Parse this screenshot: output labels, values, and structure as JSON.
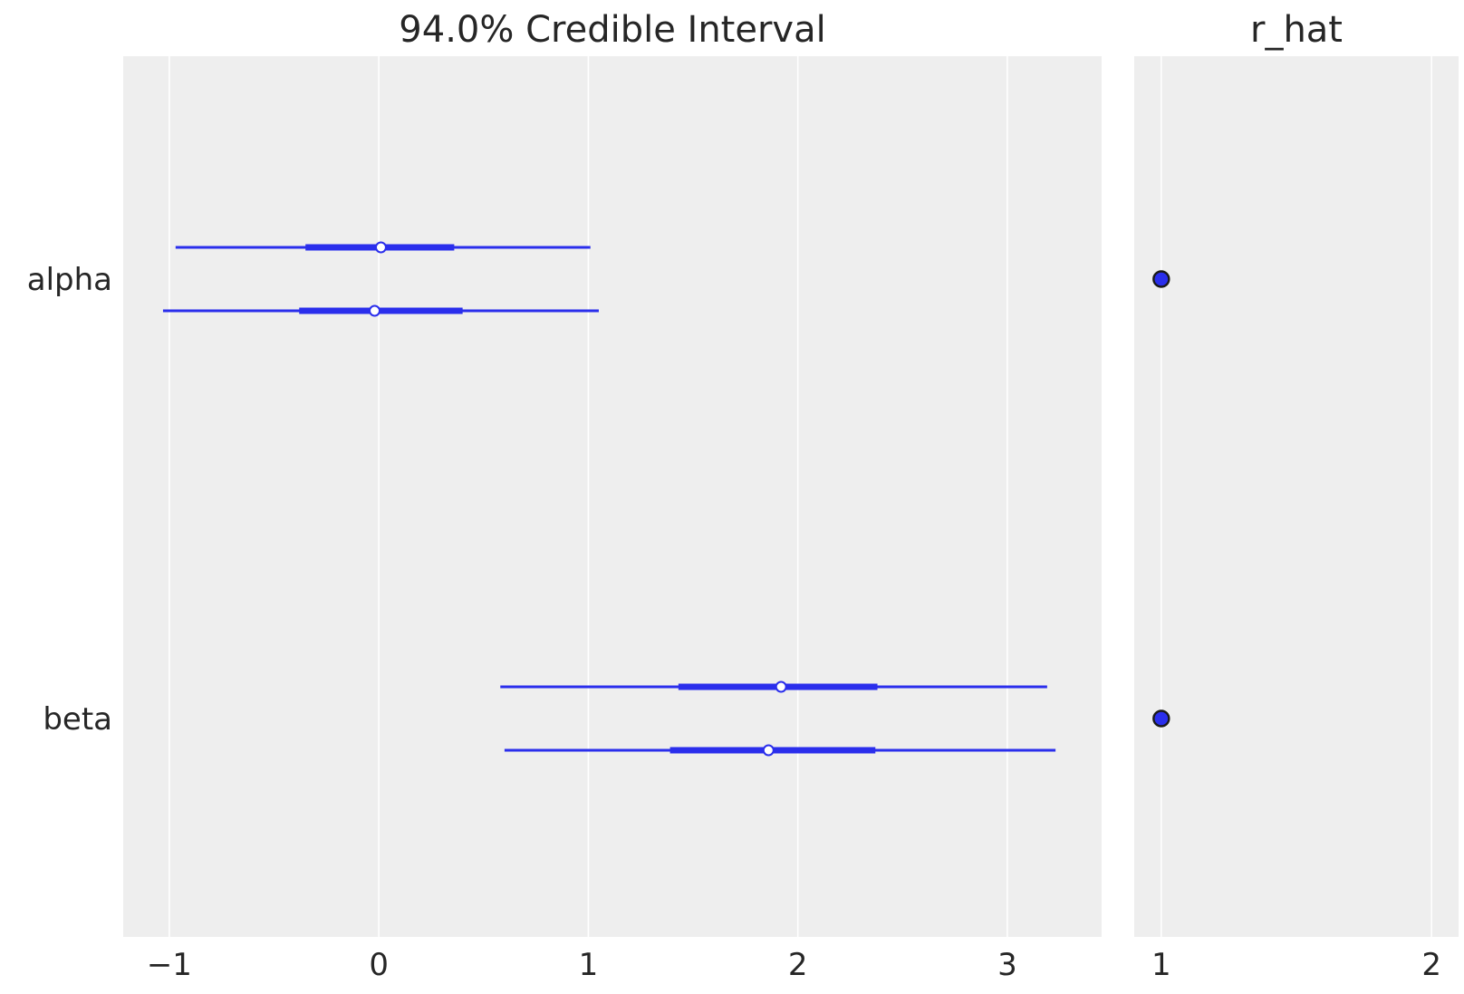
{
  "chart_data": [
    {
      "type": "forest",
      "title": "94.0% Credible Interval",
      "xlabel": "",
      "ylabel": "",
      "xlim": [
        -1.22,
        3.45
      ],
      "xticks": [
        -1,
        0,
        1,
        2,
        3
      ],
      "xtick_labels": [
        "−1",
        "0",
        "1",
        "2",
        "3"
      ],
      "grid": true,
      "variables": [
        {
          "name": "alpha",
          "chains": [
            {
              "hdi_94": [
                -0.97,
                1.01
              ],
              "hdi_50": [
                -0.35,
                0.36
              ],
              "point": 0.01
            },
            {
              "hdi_94": [
                -1.03,
                1.05
              ],
              "hdi_50": [
                -0.38,
                0.4
              ],
              "point": -0.02
            }
          ]
        },
        {
          "name": "beta",
          "chains": [
            {
              "hdi_94": [
                0.58,
                3.19
              ],
              "hdi_50": [
                1.43,
                2.38
              ],
              "point": 1.92
            },
            {
              "hdi_94": [
                0.6,
                3.23
              ],
              "hdi_50": [
                1.39,
                2.37
              ],
              "point": 1.86
            }
          ]
        }
      ]
    },
    {
      "type": "scatter",
      "title": "r_hat",
      "xlabel": "",
      "ylabel": "",
      "xlim": [
        0.9,
        2.1
      ],
      "xticks": [
        1,
        2
      ],
      "xtick_labels": [
        "1",
        "2"
      ],
      "grid": true,
      "points": [
        {
          "variable": "alpha",
          "value": 1.0
        },
        {
          "variable": "beta",
          "value": 1.0
        }
      ]
    }
  ],
  "colors": {
    "series": "#2a2eec",
    "panel_bg": "#eeeeee",
    "grid": "#ffffff",
    "text": "#262626",
    "marker_edge": "#1a1a1a"
  }
}
